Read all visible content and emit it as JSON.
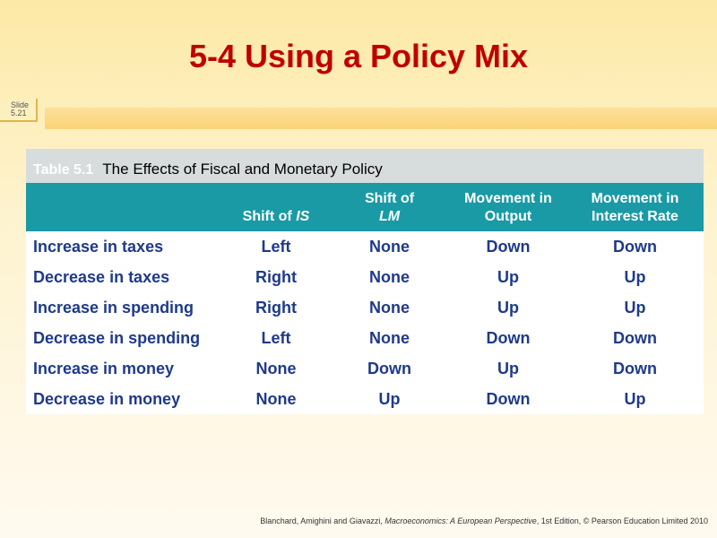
{
  "slide": {
    "title": "5-4  Using a Policy Mix",
    "slide_number_label": "Slide",
    "slide_number": "5.21"
  },
  "table": {
    "caption_number": "Table 5.1",
    "caption_title": "The Effects of Fiscal and Monetary Policy",
    "headers": [
      {
        "text": "",
        "italic": ""
      },
      {
        "text": "Shift of ",
        "italic": "IS"
      },
      {
        "text": "Shift of ",
        "italic": "LM"
      },
      {
        "text": "Movement in Output",
        "italic": ""
      },
      {
        "text": "Movement in Interest Rate",
        "italic": ""
      }
    ],
    "rows": [
      [
        "Increase in taxes",
        "Left",
        "None",
        "Down",
        "Down"
      ],
      [
        "Decrease in taxes",
        "Right",
        "None",
        "Up",
        "Up"
      ],
      [
        "Increase in spending",
        "Right",
        "None",
        "Up",
        "Up"
      ],
      [
        "Decrease in spending",
        "Left",
        "None",
        "Down",
        "Down"
      ],
      [
        "Increase in money",
        "None",
        "Down",
        "Up",
        "Down"
      ],
      [
        "Decrease in money",
        "None",
        "Up",
        "Down",
        "Up"
      ]
    ]
  },
  "footer": {
    "prefix": "Blanchard, Amighini and Giavazzi, ",
    "book": "Macroeconomics: A European Perspective",
    "suffix": ", 1st Edition, © Pearson Education Limited 2010"
  },
  "colors": {
    "title": "#c00000",
    "header_bg": "#1a9aa5",
    "body_text": "#1f3a8a",
    "caption_bg": "#d7dddc"
  }
}
